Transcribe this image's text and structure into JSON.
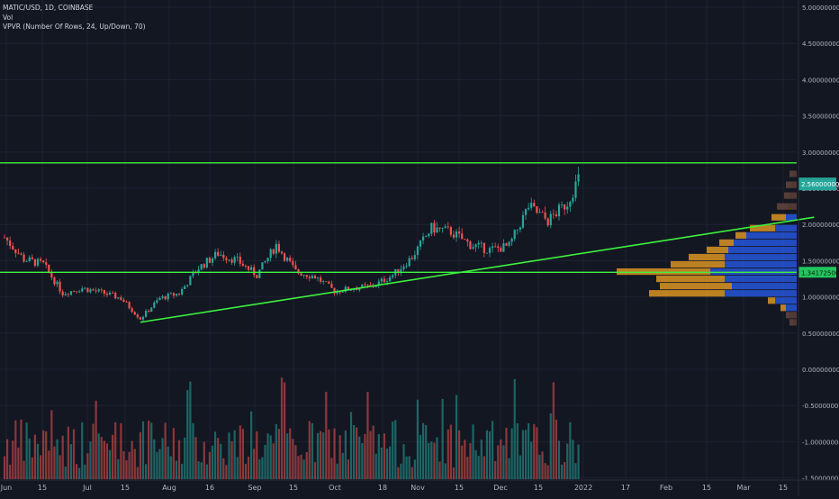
{
  "legend": {
    "symbol_line": "MATIC/USD, 1D, COINBASE",
    "volume_line": "Vol",
    "vpvr_line": "VPVR (Number Of Rows, 24, Up/Down, 70)"
  },
  "price_axis": {
    "labels": [
      "5.00000000",
      "4.50000000",
      "4.00000000",
      "3.50000000",
      "3.00000000",
      "2.50000000",
      "2.00000000",
      "1.50000000",
      "1.00000000",
      "0.50000000",
      "0.00000000",
      "-0.50000000",
      "-1.00000000",
      "-1.50000000"
    ],
    "current_price_tag": "2.56000000",
    "marked_price_tag": "1.34172500"
  },
  "time_axis": {
    "labels": [
      "Jun",
      "15",
      "Jul",
      "15",
      "Aug",
      "16",
      "Sep",
      "15",
      "Oct",
      "18",
      "Nov",
      "15",
      "Dec",
      "15",
      "2022",
      "17",
      "Feb",
      "15",
      "Mar",
      "15"
    ]
  },
  "colors": {
    "background": "#131722",
    "up_candle": "#26a69a",
    "down_candle": "#ef5350",
    "trend_line": "#3ef13e",
    "vpvr_up": "#2962ff",
    "vpvr_down": "#f5a623",
    "grid": "#1e2230"
  },
  "chart_data": {
    "type": "candlestick",
    "title": "MATIC/USD, 1D, COINBASE",
    "x_range": [
      "2021-06-01",
      "2022-03-25"
    ],
    "y_range": [
      -1.5,
      5.0
    ],
    "price_series": [
      {
        "date": "2021-06-01",
        "close": 1.82
      },
      {
        "date": "2021-06-08",
        "close": 1.52
      },
      {
        "date": "2021-06-15",
        "close": 1.45
      },
      {
        "date": "2021-06-22",
        "close": 1.05
      },
      {
        "date": "2021-06-29",
        "close": 1.12
      },
      {
        "date": "2021-07-06",
        "close": 1.06
      },
      {
        "date": "2021-07-13",
        "close": 0.98
      },
      {
        "date": "2021-07-20",
        "close": 0.7
      },
      {
        "date": "2021-07-27",
        "close": 0.98
      },
      {
        "date": "2021-08-03",
        "close": 1.05
      },
      {
        "date": "2021-08-10",
        "close": 1.4
      },
      {
        "date": "2021-08-17",
        "close": 1.6
      },
      {
        "date": "2021-08-24",
        "close": 1.5
      },
      {
        "date": "2021-08-31",
        "close": 1.3
      },
      {
        "date": "2021-09-07",
        "close": 1.72
      },
      {
        "date": "2021-09-14",
        "close": 1.35
      },
      {
        "date": "2021-09-21",
        "close": 1.28
      },
      {
        "date": "2021-09-28",
        "close": 1.08
      },
      {
        "date": "2021-10-05",
        "close": 1.12
      },
      {
        "date": "2021-10-12",
        "close": 1.15
      },
      {
        "date": "2021-10-19",
        "close": 1.3
      },
      {
        "date": "2021-10-26",
        "close": 1.55
      },
      {
        "date": "2021-11-02",
        "close": 1.95
      },
      {
        "date": "2021-11-09",
        "close": 1.9
      },
      {
        "date": "2021-11-16",
        "close": 1.72
      },
      {
        "date": "2021-11-23",
        "close": 1.65
      },
      {
        "date": "2021-11-30",
        "close": 1.7
      },
      {
        "date": "2021-12-07",
        "close": 2.25
      },
      {
        "date": "2021-12-14",
        "close": 2.05
      },
      {
        "date": "2021-12-21",
        "close": 2.3
      },
      {
        "date": "2021-12-27",
        "close": 2.8
      },
      {
        "date": "2022-01-02",
        "close": 2.56
      }
    ],
    "horizontal_lines": [
      2.85,
      1.34
    ],
    "trend_line": {
      "from": {
        "date": "2021-07-20",
        "price": 0.65
      },
      "to": {
        "date": "2022-03-20",
        "price": 2.1
      }
    },
    "vpvr_levels": [
      {
        "price": 2.7,
        "up": 0.02,
        "down": 0.02
      },
      {
        "price": 2.55,
        "up": 0.03,
        "down": 0.03
      },
      {
        "price": 2.4,
        "up": 0.04,
        "down": 0.03
      },
      {
        "price": 2.25,
        "up": 0.05,
        "down": 0.06
      },
      {
        "price": 2.1,
        "up": 0.06,
        "down": 0.08
      },
      {
        "price": 1.95,
        "up": 0.12,
        "down": 0.14
      },
      {
        "price": 1.85,
        "up": 0.28,
        "down": 0.06
      },
      {
        "price": 1.75,
        "up": 0.35,
        "down": 0.08
      },
      {
        "price": 1.65,
        "up": 0.38,
        "down": 0.12
      },
      {
        "price": 1.55,
        "up": 0.4,
        "down": 0.2
      },
      {
        "price": 1.45,
        "up": 0.4,
        "down": 0.3
      },
      {
        "price": 1.35,
        "up": 0.48,
        "down": 0.52
      },
      {
        "price": 1.25,
        "up": 0.4,
        "down": 0.38
      },
      {
        "price": 1.15,
        "up": 0.36,
        "down": 0.4
      },
      {
        "price": 1.05,
        "up": 0.4,
        "down": 0.42
      },
      {
        "price": 0.95,
        "up": 0.12,
        "down": 0.04
      },
      {
        "price": 0.85,
        "up": 0.06,
        "down": 0.03
      },
      {
        "price": 0.75,
        "up": 0.04,
        "down": 0.02
      },
      {
        "price": 0.65,
        "up": 0.02,
        "down": 0.02
      }
    ]
  }
}
